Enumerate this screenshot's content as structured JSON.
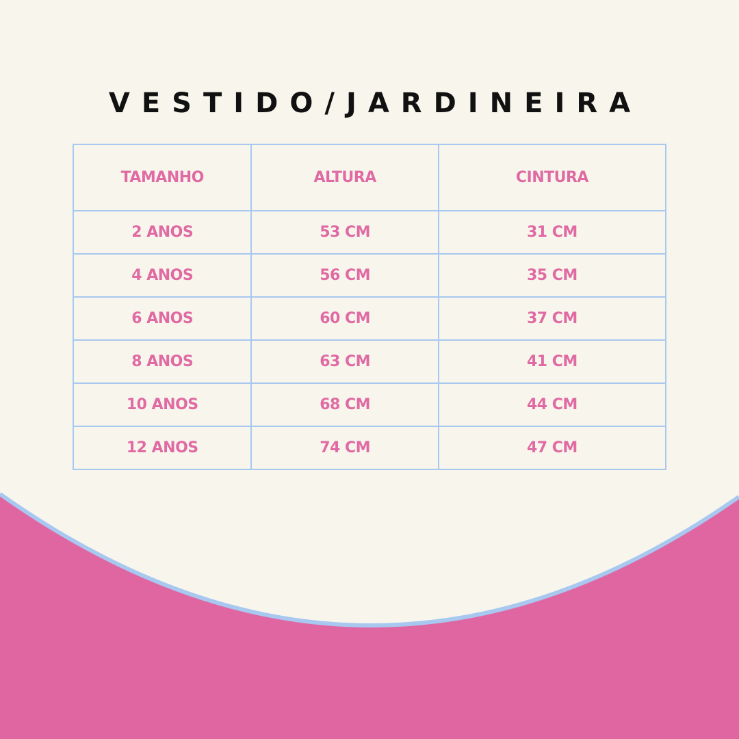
{
  "title": "VESTIDO/JARDINEIRA",
  "colors": {
    "background": "#f8f6ec",
    "accent_pink": "#e06aa3",
    "border_blue": "#a8c8f0",
    "title": "#111111"
  },
  "table": {
    "headers": [
      "TAMANHO",
      "ALTURA",
      "CINTURA"
    ],
    "rows": [
      [
        "2 ANOS",
        "53 CM",
        "31 CM"
      ],
      [
        "4 ANOS",
        "56 CM",
        "35 CM"
      ],
      [
        "6 ANOS",
        "60 CM",
        "37 CM"
      ],
      [
        "8 ANOS",
        "63 CM",
        "41 CM"
      ],
      [
        "10 ANOS",
        "68 CM",
        "44 CM"
      ],
      [
        "12 ANOS",
        "74 CM",
        "47 CM"
      ]
    ]
  }
}
